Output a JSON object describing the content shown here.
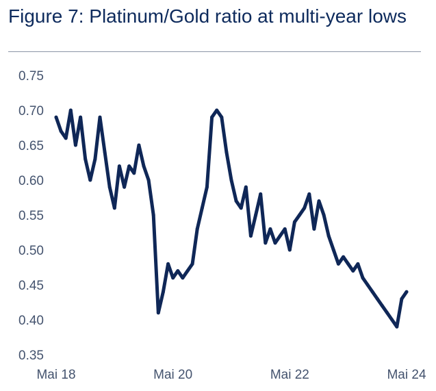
{
  "chart_data": {
    "type": "line",
    "title": "Figure 7: Platinum/Gold ratio at multi-year lows",
    "xlabel": "",
    "ylabel": "",
    "x_ticks": [
      "Mai 18",
      "Mai 20",
      "Mai 22",
      "Mai 24"
    ],
    "y_ticks": [
      "0.75",
      "0.70",
      "0.65",
      "0.60",
      "0.55",
      "0.50",
      "0.45",
      "0.40",
      "0.35"
    ],
    "ylim": [
      0.35,
      0.75
    ],
    "xlim": [
      "2018-05",
      "2024-05"
    ],
    "grid": false,
    "line_color": "#0f2757",
    "series": [
      {
        "name": "",
        "x": [
          "2018-05",
          "2018-06",
          "2018-07",
          "2018-08",
          "2018-09",
          "2018-10",
          "2018-11",
          "2018-12",
          "2019-01",
          "2019-02",
          "2019-03",
          "2019-04",
          "2019-05",
          "2019-06",
          "2019-07",
          "2019-08",
          "2019-09",
          "2019-10",
          "2019-11",
          "2019-12",
          "2020-01",
          "2020-02",
          "2020-03",
          "2020-04",
          "2020-05",
          "2020-06",
          "2020-07",
          "2020-08",
          "2020-09",
          "2020-10",
          "2020-11",
          "2020-12",
          "2021-01",
          "2021-02",
          "2021-03",
          "2021-04",
          "2021-05",
          "2021-06",
          "2021-07",
          "2021-08",
          "2021-09",
          "2021-10",
          "2021-11",
          "2021-12",
          "2022-01",
          "2022-02",
          "2022-03",
          "2022-04",
          "2022-05",
          "2022-06",
          "2022-07",
          "2022-08",
          "2022-09",
          "2022-10",
          "2022-11",
          "2022-12",
          "2023-01",
          "2023-02",
          "2023-03",
          "2023-04",
          "2023-05",
          "2023-06",
          "2023-07",
          "2023-08",
          "2023-09",
          "2023-10",
          "2023-11",
          "2023-12",
          "2024-01",
          "2024-02",
          "2024-03",
          "2024-04",
          "2024-05"
        ],
        "values": [
          0.69,
          0.67,
          0.66,
          0.7,
          0.65,
          0.69,
          0.63,
          0.6,
          0.63,
          0.69,
          0.64,
          0.59,
          0.56,
          0.62,
          0.59,
          0.62,
          0.61,
          0.65,
          0.62,
          0.6,
          0.55,
          0.41,
          0.44,
          0.48,
          0.46,
          0.47,
          0.46,
          0.47,
          0.48,
          0.53,
          0.56,
          0.59,
          0.69,
          0.7,
          0.69,
          0.64,
          0.6,
          0.57,
          0.56,
          0.59,
          0.52,
          0.55,
          0.58,
          0.51,
          0.53,
          0.51,
          0.52,
          0.53,
          0.5,
          0.54,
          0.55,
          0.56,
          0.58,
          0.53,
          0.57,
          0.55,
          0.52,
          0.5,
          0.48,
          0.49,
          0.48,
          0.47,
          0.48,
          0.46,
          0.45,
          0.44,
          0.43,
          0.42,
          0.41,
          0.4,
          0.39,
          0.43,
          0.44
        ]
      }
    ]
  }
}
